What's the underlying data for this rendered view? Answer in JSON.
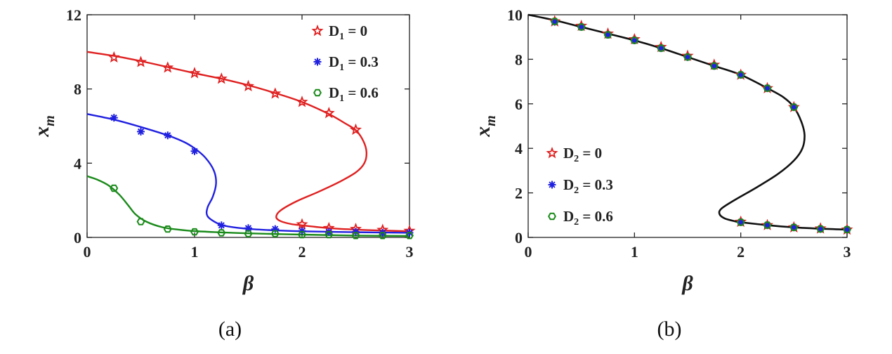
{
  "chart_data": [
    {
      "type": "line",
      "panel_label": "(a)",
      "xlabel": "β",
      "ylabel": "x",
      "ylabel_sub": "m",
      "xlim": [
        0,
        3
      ],
      "ylim": [
        0,
        12
      ],
      "xticks": [
        0,
        1,
        2,
        3
      ],
      "yticks": [
        0,
        4,
        8,
        12
      ],
      "legend_position": "top-right",
      "legend": [
        {
          "text": "D",
          "sub": "1",
          "suffix": " = 0",
          "color": "#e02020",
          "marker": "star"
        },
        {
          "text": "D",
          "sub": "1",
          "suffix": " = 0.3",
          "color": "#2020e0",
          "marker": "asterisk"
        },
        {
          "text": "D",
          "sub": "1",
          "suffix": " = 0.6",
          "color": "#1a8a1a",
          "marker": "hexagon"
        }
      ],
      "series": [
        {
          "color": "#e02020",
          "curve": [
            [
              0,
              10.0
            ],
            [
              0.25,
              9.78
            ],
            [
              0.5,
              9.5
            ],
            [
              0.75,
              9.18
            ],
            [
              1.0,
              8.85
            ],
            [
              1.25,
              8.55
            ],
            [
              1.5,
              8.2
            ],
            [
              1.75,
              7.78
            ],
            [
              2.0,
              7.3
            ],
            [
              2.25,
              6.65
            ],
            [
              2.4,
              6.15
            ],
            [
              2.5,
              5.78
            ],
            [
              2.57,
              5.2
            ],
            [
              2.6,
              4.6
            ],
            [
              2.58,
              4.0
            ],
            [
              2.5,
              3.5
            ],
            [
              2.35,
              3.0
            ],
            [
              2.15,
              2.45
            ],
            [
              1.95,
              1.95
            ],
            [
              1.8,
              1.45
            ],
            [
              1.76,
              1.1
            ],
            [
              1.8,
              0.88
            ],
            [
              1.9,
              0.72
            ],
            [
              2.0,
              0.65
            ],
            [
              2.25,
              0.5
            ],
            [
              2.5,
              0.42
            ],
            [
              2.75,
              0.37
            ],
            [
              3.0,
              0.33
            ]
          ],
          "points": [
            [
              0.25,
              9.7
            ],
            [
              0.5,
              9.45
            ],
            [
              0.75,
              9.15
            ],
            [
              1.0,
              8.85
            ],
            [
              1.25,
              8.55
            ],
            [
              1.5,
              8.15
            ],
            [
              1.75,
              7.75
            ],
            [
              2.0,
              7.3
            ],
            [
              2.25,
              6.7
            ],
            [
              2.5,
              5.8
            ],
            [
              2.0,
              0.7
            ],
            [
              2.25,
              0.5
            ],
            [
              2.5,
              0.45
            ],
            [
              2.75,
              0.4
            ],
            [
              3.0,
              0.35
            ]
          ]
        },
        {
          "color": "#2020e0",
          "curve": [
            [
              0,
              6.65
            ],
            [
              0.25,
              6.35
            ],
            [
              0.5,
              5.95
            ],
            [
              0.75,
              5.5
            ],
            [
              0.9,
              5.15
            ],
            [
              1.0,
              4.8
            ],
            [
              1.1,
              4.3
            ],
            [
              1.18,
              3.6
            ],
            [
              1.2,
              2.9
            ],
            [
              1.17,
              2.2
            ],
            [
              1.12,
              1.6
            ],
            [
              1.12,
              1.15
            ],
            [
              1.2,
              0.8
            ],
            [
              1.3,
              0.6
            ],
            [
              1.5,
              0.46
            ],
            [
              1.75,
              0.38
            ],
            [
              2.0,
              0.33
            ],
            [
              2.5,
              0.28
            ],
            [
              3.0,
              0.25
            ]
          ],
          "points": [
            [
              0.25,
              6.45
            ],
            [
              0.5,
              5.7
            ],
            [
              0.75,
              5.5
            ],
            [
              1.0,
              4.65
            ],
            [
              1.25,
              0.65
            ],
            [
              1.5,
              0.5
            ],
            [
              1.75,
              0.45
            ],
            [
              2.0,
              0.35
            ],
            [
              2.25,
              0.3
            ],
            [
              2.5,
              0.3
            ],
            [
              2.75,
              0.25
            ],
            [
              3.0,
              0.25
            ]
          ]
        },
        {
          "color": "#1a8a1a",
          "curve": [
            [
              0,
              3.3
            ],
            [
              0.1,
              3.1
            ],
            [
              0.2,
              2.8
            ],
            [
              0.3,
              2.3
            ],
            [
              0.38,
              1.75
            ],
            [
              0.45,
              1.25
            ],
            [
              0.55,
              0.85
            ],
            [
              0.7,
              0.55
            ],
            [
              0.85,
              0.42
            ],
            [
              1.0,
              0.34
            ],
            [
              1.25,
              0.27
            ],
            [
              1.5,
              0.22
            ],
            [
              2.0,
              0.15
            ],
            [
              2.5,
              0.1
            ],
            [
              3.0,
              0.08
            ]
          ],
          "points": [
            [
              0.25,
              2.65
            ],
            [
              0.5,
              0.85
            ],
            [
              0.75,
              0.45
            ],
            [
              1.0,
              0.3
            ],
            [
              1.25,
              0.25
            ],
            [
              1.5,
              0.2
            ],
            [
              1.75,
              0.2
            ],
            [
              2.0,
              0.15
            ],
            [
              2.25,
              0.15
            ],
            [
              2.5,
              0.1
            ],
            [
              2.75,
              0.1
            ],
            [
              3.0,
              0.1
            ]
          ]
        }
      ]
    },
    {
      "type": "line",
      "panel_label": "(b)",
      "xlabel": "β",
      "ylabel": "x",
      "ylabel_sub": "m",
      "xlim": [
        0,
        3
      ],
      "ylim": [
        0,
        10
      ],
      "xticks": [
        0,
        1,
        2,
        3
      ],
      "yticks": [
        0,
        2,
        4,
        6,
        8,
        10
      ],
      "legend_position": "bottom-left",
      "legend": [
        {
          "text": "D",
          "sub": "2",
          "suffix": " = 0",
          "color": "#e02020",
          "marker": "star"
        },
        {
          "text": "D",
          "sub": "2",
          "suffix": " = 0.3",
          "color": "#2020e0",
          "marker": "asterisk"
        },
        {
          "text": "D",
          "sub": "2",
          "suffix": " = 0.6",
          "color": "#1a8a1a",
          "marker": "hexagon"
        }
      ],
      "curve_color": "#111111",
      "curve": [
        [
          0,
          10.0
        ],
        [
          0.25,
          9.75
        ],
        [
          0.5,
          9.45
        ],
        [
          0.75,
          9.15
        ],
        [
          1.0,
          8.85
        ],
        [
          1.25,
          8.5
        ],
        [
          1.5,
          8.1
        ],
        [
          1.75,
          7.7
        ],
        [
          2.0,
          7.3
        ],
        [
          2.25,
          6.7
        ],
        [
          2.4,
          6.3
        ],
        [
          2.5,
          5.85
        ],
        [
          2.57,
          5.2
        ],
        [
          2.6,
          4.6
        ],
        [
          2.58,
          4.0
        ],
        [
          2.5,
          3.45
        ],
        [
          2.35,
          2.85
        ],
        [
          2.15,
          2.25
        ],
        [
          1.95,
          1.7
        ],
        [
          1.82,
          1.3
        ],
        [
          1.8,
          1.05
        ],
        [
          1.85,
          0.85
        ],
        [
          1.95,
          0.72
        ],
        [
          2.0,
          0.68
        ],
        [
          2.25,
          0.55
        ],
        [
          2.5,
          0.45
        ],
        [
          2.75,
          0.39
        ],
        [
          3.0,
          0.35
        ]
      ],
      "series": [
        {
          "color": "#e02020",
          "points": [
            [
              0.25,
              9.7
            ],
            [
              0.5,
              9.5
            ],
            [
              0.75,
              9.15
            ],
            [
              1.0,
              8.9
            ],
            [
              1.25,
              8.55
            ],
            [
              1.5,
              8.15
            ],
            [
              1.75,
              7.75
            ],
            [
              2.0,
              7.3
            ],
            [
              2.25,
              6.7
            ],
            [
              2.5,
              5.85
            ],
            [
              2.0,
              0.7
            ],
            [
              2.25,
              0.55
            ],
            [
              2.5,
              0.45
            ],
            [
              2.75,
              0.4
            ],
            [
              3.0,
              0.35
            ]
          ]
        },
        {
          "color": "#2020e0",
          "points": [
            [
              0.25,
              9.68
            ],
            [
              0.5,
              9.45
            ],
            [
              0.75,
              9.1
            ],
            [
              1.0,
              8.85
            ],
            [
              1.25,
              8.5
            ],
            [
              1.5,
              8.1
            ],
            [
              1.75,
              7.7
            ],
            [
              2.0,
              7.3
            ],
            [
              2.25,
              6.7
            ],
            [
              2.5,
              5.85
            ],
            [
              2.0,
              0.68
            ],
            [
              2.25,
              0.55
            ],
            [
              2.5,
              0.45
            ],
            [
              2.75,
              0.38
            ],
            [
              3.0,
              0.35
            ]
          ]
        },
        {
          "color": "#1a8a1a",
          "points": [
            [
              0.25,
              9.7
            ],
            [
              0.5,
              9.45
            ],
            [
              0.75,
              9.1
            ],
            [
              1.0,
              8.85
            ],
            [
              1.25,
              8.5
            ],
            [
              1.5,
              8.1
            ],
            [
              1.75,
              7.7
            ],
            [
              2.0,
              7.3
            ],
            [
              2.25,
              6.7
            ],
            [
              2.5,
              5.85
            ],
            [
              2.0,
              0.68
            ],
            [
              2.25,
              0.55
            ],
            [
              2.5,
              0.45
            ],
            [
              2.75,
              0.38
            ],
            [
              3.0,
              0.35
            ]
          ]
        }
      ]
    }
  ]
}
